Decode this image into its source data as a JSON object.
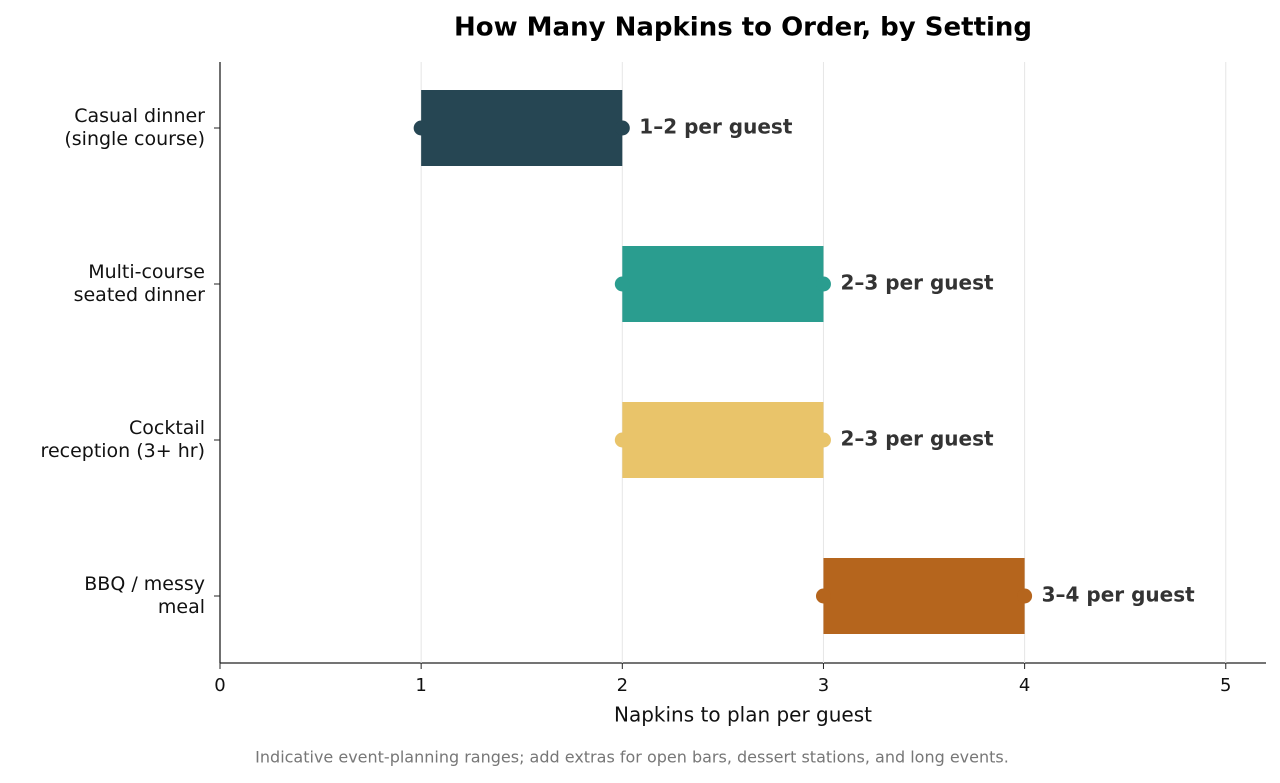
{
  "chart_data": {
    "type": "range_bar",
    "title": "How Many Napkins to Order, by Setting",
    "x_label": "Napkins to plan per guest",
    "footnote": "Indicative event-planning ranges; add extras for open bars, dessert stations, and long events.",
    "categories": [
      "Casual dinner\n(single course)",
      "Multi-course\nseated dinner",
      "Cocktail\nreception (3+ hr)",
      "BBQ / messy\nmeal"
    ],
    "low": [
      1,
      2,
      2,
      3
    ],
    "high": [
      2,
      3,
      3,
      4
    ],
    "value_labels": [
      "1–2 per guest",
      "2–3 per guest",
      "2–3 per guest",
      "3–4 per guest"
    ],
    "colors": [
      "#264653",
      "#2a9d8f",
      "#e9c46a",
      "#b5651d"
    ],
    "xlim": [
      0,
      5.2
    ],
    "xticks": [
      0,
      1,
      2,
      3,
      4,
      5
    ],
    "grid": true
  }
}
